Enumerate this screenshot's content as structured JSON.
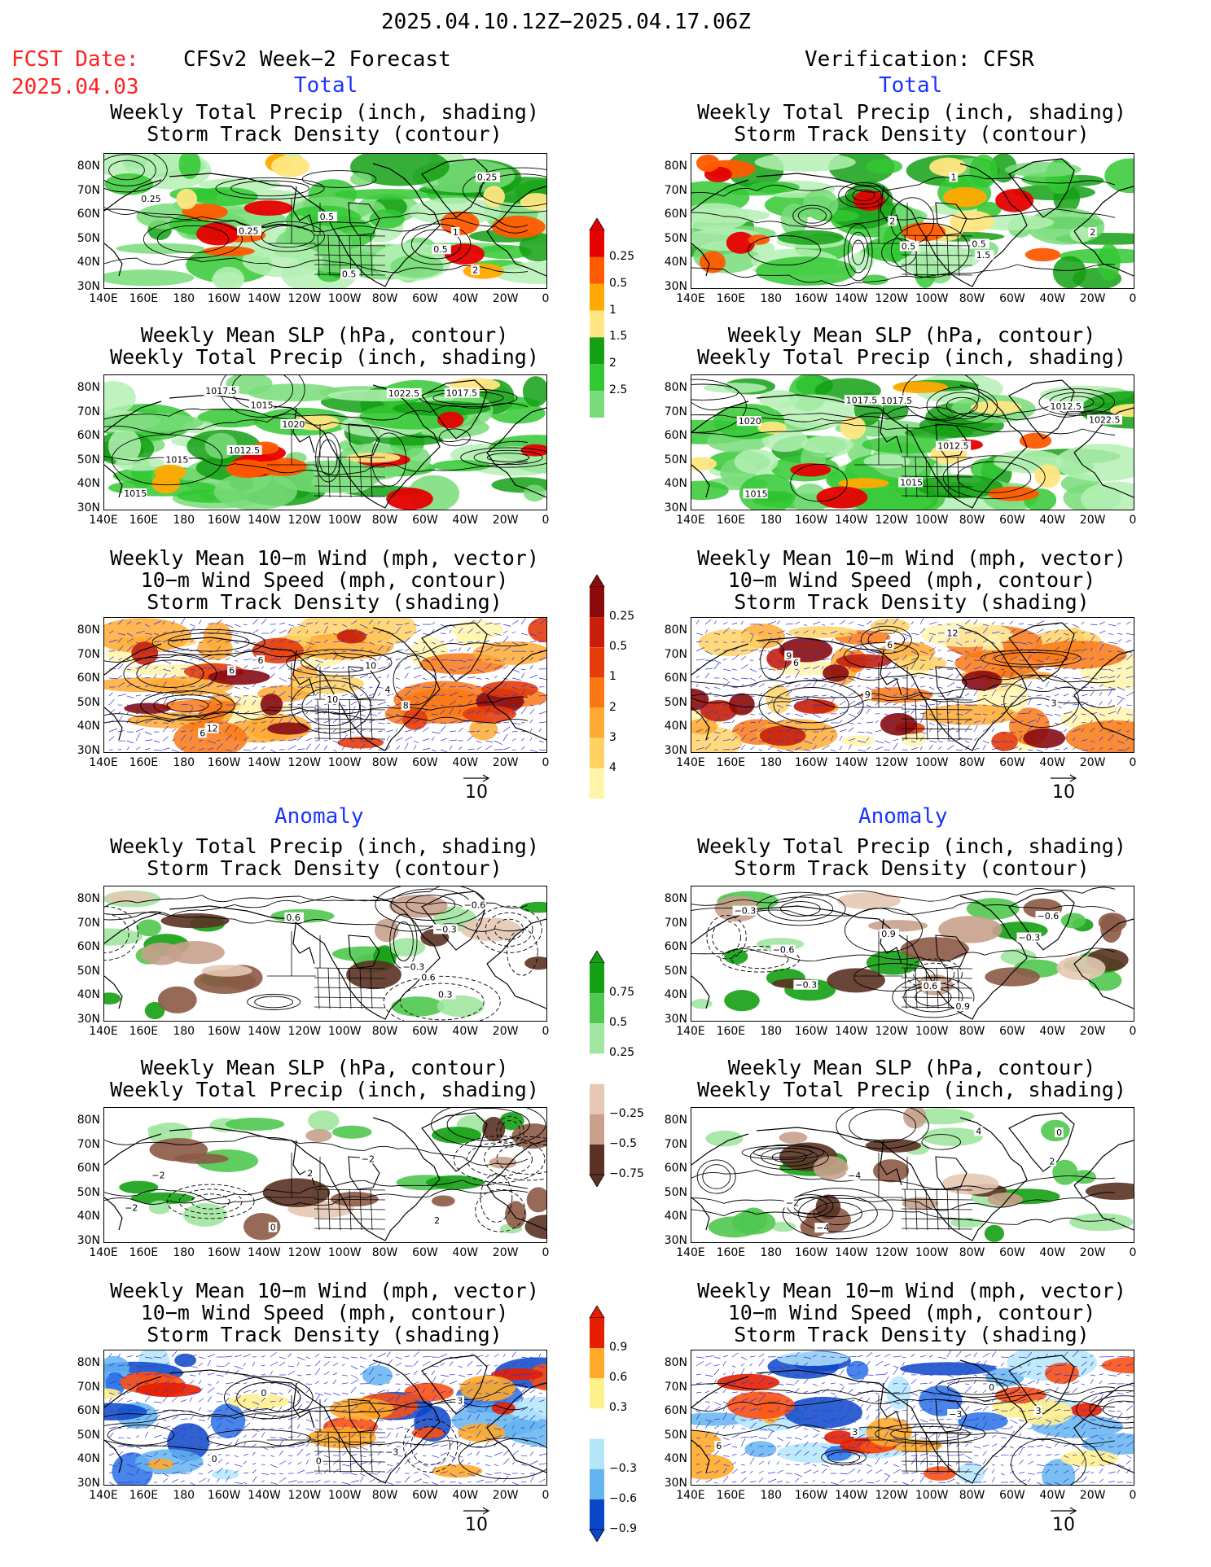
{
  "header": {
    "period": "2025.04.10.12Z−2025.04.17.06Z",
    "fcst_label": "FCST Date:",
    "fcst_date": "2025.04.03",
    "left_title": "CFSv2 Week−2 Forecast",
    "right_title": "Verification: CFSR",
    "total_label": "Total",
    "anomaly_label": "Anomaly"
  },
  "titles": {
    "precip_storm": [
      "Weekly Total Precip (inch, shading)",
      "Storm Track Density (contour)"
    ],
    "slp_precip": [
      "Weekly Mean SLP (hPa, contour)",
      "Weekly Total Precip (inch, shading)"
    ],
    "wind_storm": [
      "Weekly Mean 10−m Wind (mph, vector)",
      "10−m Wind Speed (mph, contour)",
      "Storm Track Density (shading)"
    ]
  },
  "axes": {
    "lat_ticks": [
      "80N",
      "70N",
      "60N",
      "50N",
      "40N",
      "30N"
    ],
    "lon_ticks": [
      "140E",
      "160E",
      "180",
      "160W",
      "140W",
      "120W",
      "100W",
      "80W",
      "60W",
      "40W",
      "20W",
      "0"
    ]
  },
  "vector_ref": "10",
  "colors": {
    "precip": [
      "#b4f0b4",
      "#78dc78",
      "#32c832",
      "#14a014",
      "#ffe682",
      "#ffaa00",
      "#ff5a00",
      "#e60000"
    ],
    "storm_total": [
      "#fff5aa",
      "#ffd264",
      "#ffaa32",
      "#fa7814",
      "#e63c0a",
      "#c81e0a",
      "#8c0a0a"
    ],
    "anom_precip_pos": [
      "#a0e6a0",
      "#50c850",
      "#14a014"
    ],
    "anom_precip_neg": [
      "#e6c8b4",
      "#c8a08c",
      "#8c5a46",
      "#5a3223"
    ],
    "anom_storm_pos": [
      "#fff08c",
      "#ffaa28",
      "#fa5014",
      "#e61e00"
    ],
    "anom_storm_neg": [
      "#b4e6fa",
      "#64b4f0",
      "#286ee6",
      "#0a46c8"
    ]
  },
  "colorbars": {
    "precip_total": [
      "0.25",
      "0.5",
      "1",
      "1.5",
      "2",
      "2.5"
    ],
    "storm_total": [
      "0.25",
      "0.5",
      "1",
      "2",
      "3",
      "4"
    ],
    "precip_anom": [
      "0.75",
      "0.5",
      "0.25",
      "−0.25",
      "−0.5",
      "−0.75"
    ],
    "storm_anom": [
      "0.9",
      "0.6",
      "0.3",
      "−0.3",
      "−0.6",
      "−0.9"
    ]
  },
  "maps": {
    "fc_precip_total": [
      "0.5",
      "0.5",
      "0.25",
      "1",
      "0.25",
      "0.5",
      "0.25",
      "2"
    ],
    "vf_precip_total": [
      "0.5",
      "2",
      "1",
      "2",
      "1.5",
      "0.5"
    ],
    "fc_slp_total": [
      "1022.5",
      "1015",
      "1020",
      "1012.5",
      "1017.5",
      "1015",
      "1017.5",
      "1015"
    ],
    "vf_slp_total": [
      "1022.5",
      "1012.5",
      "1017.5",
      "1020",
      "1017.5",
      "1012.5",
      "1015",
      "1015"
    ],
    "fc_wind_total": [
      "6",
      "4",
      "8",
      "6",
      "12",
      "10",
      "6",
      "10"
    ],
    "vf_wind_total": [
      "9",
      "6",
      "12",
      "6",
      "9",
      "3"
    ],
    "fc_precip_anom": [
      "0.6",
      "0.6",
      "0.3",
      "−0.3",
      "−0.3",
      "−0.6"
    ],
    "vf_precip_anom": [
      "0.9",
      "0.6",
      "−0.6",
      "0.9",
      "−0.3",
      "−0.6",
      "−0.3",
      "−0.3"
    ],
    "fc_slp_anom": [
      "2",
      "0",
      "−2",
      "−2",
      "2",
      "−2"
    ],
    "vf_slp_anom": [
      "4",
      "−4",
      "−2",
      "0",
      "−4",
      "2"
    ],
    "fc_wind_anom": [
      "0",
      "−3",
      "0",
      "3",
      "0"
    ],
    "vf_wind_anom": [
      "3",
      "6",
      "−3",
      "0",
      "3"
    ]
  }
}
